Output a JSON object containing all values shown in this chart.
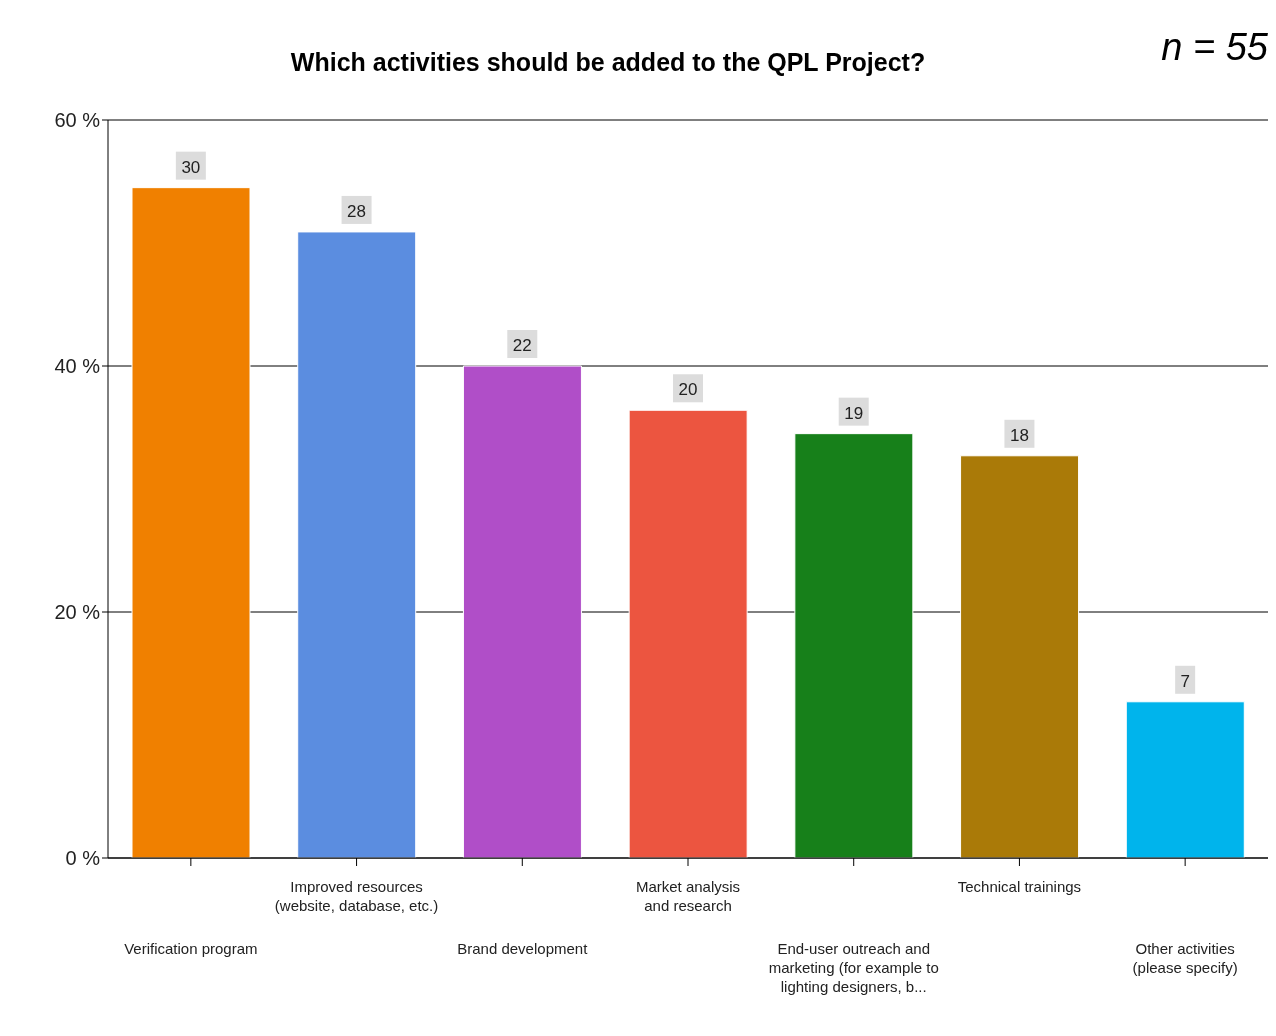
{
  "chart_data": {
    "type": "bar",
    "title": "Which activities should be added to the QPL Project?",
    "annotations": [
      "n = 55",
      {
        "text": "30",
        "x": "Verification program",
        "y": 54.5
      },
      {
        "text": "28",
        "x": "Improved resources\n(website, database, etc.)",
        "y": 50.9
      },
      {
        "text": "22",
        "x": "Brand development",
        "y": 40
      },
      {
        "text": "20",
        "x": "Market analysis\nand research",
        "y": 36.4
      },
      {
        "text": "19",
        "x": "End-user outreach and\nmarketing (for example to\nlighting designers, b...",
        "y": 34.5
      },
      {
        "text": "18",
        "x": "Technical trainings",
        "y": 32.7
      },
      {
        "text": "7",
        "x": "Other activities\n(please specify)",
        "y": 12.7
      }
    ],
    "categories": [
      "Verification program",
      "Improved resources\n(website, database, etc.)",
      "Brand development",
      "Market analysis\nand research",
      "End-user outreach and\nmarketing (for example to\nlighting designers, b...",
      "Technical trainings",
      "Other activities\n(please specify)"
    ],
    "values": [
      54.5,
      50.9,
      40,
      36.4,
      34.5,
      32.7,
      12.7
    ],
    "colors": [
      "#f08000",
      "#5b8de0",
      "#b04ec8",
      "#ec5540",
      "#17801a",
      "#aa7a08",
      "#00b4ec"
    ],
    "ylim": [
      0,
      60
    ],
    "yticks": [
      {
        "value": 0,
        "label": "0 %"
      },
      {
        "value": 20,
        "label": "20 %"
      },
      {
        "value": 40,
        "label": "40 %"
      },
      {
        "value": 60,
        "label": "60 %"
      }
    ],
    "grid": "y"
  }
}
